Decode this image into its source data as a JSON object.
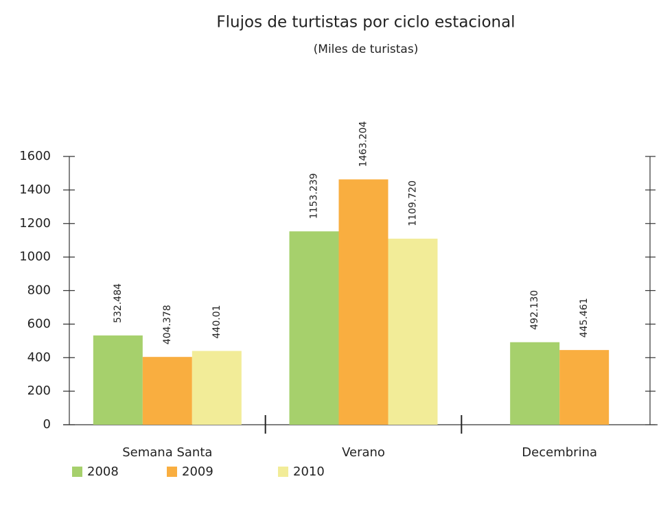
{
  "chart_data": {
    "type": "bar",
    "title": "Flujos de turtistas por ciclo estacional",
    "subtitle": "(Miles de turistas)",
    "categories": [
      "Semana Santa",
      "Verano",
      "Decembrina"
    ],
    "series": [
      {
        "name": "2008",
        "color": "#a6d06c",
        "values": [
          532.484,
          1153.239,
          492.13
        ],
        "value_labels": [
          "532.484",
          "1153.239",
          "492.130"
        ]
      },
      {
        "name": "2009",
        "color": "#f9ae40",
        "values": [
          404.378,
          1463.204,
          445.461
        ],
        "value_labels": [
          "404.378",
          "1463.204",
          "445.461"
        ]
      },
      {
        "name": "2010",
        "color": "#f2ec98",
        "values": [
          440.01,
          1109.72,
          null
        ],
        "value_labels": [
          "440.01",
          "1109.720",
          null
        ]
      }
    ],
    "ylim": [
      0,
      1600
    ],
    "yticks": [
      0,
      200,
      400,
      600,
      800,
      1000,
      1200,
      1400,
      1600
    ]
  }
}
